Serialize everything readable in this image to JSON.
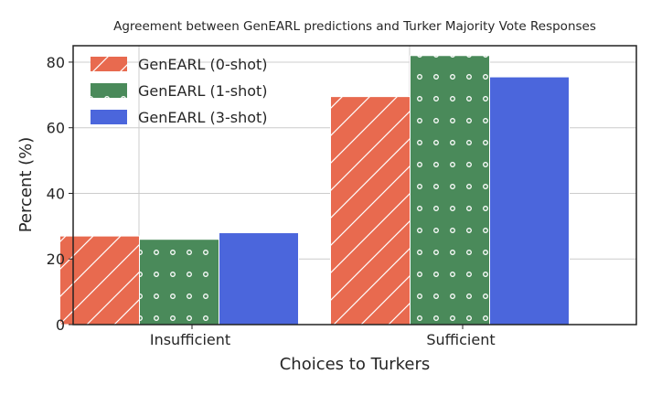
{
  "chart_data": {
    "type": "bar",
    "title": "Agreement between GenEARL predictions and Turker Majority Vote Responses",
    "xlabel": "Choices to Turkers",
    "ylabel": "Percent (%)",
    "categories": [
      "Insufficient",
      "Sufficient"
    ],
    "ylim": [
      0,
      85
    ],
    "yticks": [
      0,
      20,
      40,
      60,
      80
    ],
    "grid": true,
    "legend_position": "top-left",
    "series": [
      {
        "name": "GenEARL (0-shot)",
        "values": [
          27,
          69.5
        ],
        "color": "#e86a4f",
        "hatch": "diagonal"
      },
      {
        "name": "GenEARL (1-shot)",
        "values": [
          26,
          82
        ],
        "color": "#4a8a5a",
        "hatch": "dots"
      },
      {
        "name": "GenEARL (3-shot)",
        "values": [
          28,
          75.5
        ],
        "color": "#4b66dc",
        "hatch": "none"
      }
    ]
  }
}
